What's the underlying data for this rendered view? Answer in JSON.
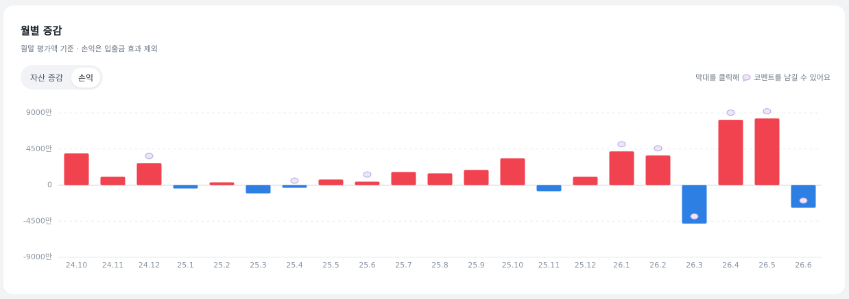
{
  "header": {
    "title": "월별 증감",
    "subtitle": "월말 평가액 기준 · 손익은 입출금 효과 제외"
  },
  "toggle": {
    "options": [
      "자산 증감",
      "손익"
    ],
    "active": 1
  },
  "hint": {
    "before": "막대를 클릭해",
    "after": "코멘트를 남길 수 있어요"
  },
  "chart_data": {
    "type": "bar",
    "categories": [
      "24.10",
      "24.11",
      "24.12",
      "25.1",
      "25.2",
      "25.3",
      "25.4",
      "25.5",
      "25.6",
      "25.7",
      "25.8",
      "25.9",
      "25.10",
      "25.11",
      "25.12",
      "26.1",
      "26.2",
      "26.3",
      "26.4",
      "26.5",
      "26.6"
    ],
    "values": [
      3950,
      1030,
      2740,
      -430,
      340,
      -1030,
      -340,
      690,
      430,
      1630,
      1460,
      1890,
      3340,
      -770,
      1030,
      4200,
      3690,
      -4800,
      8140,
      8310,
      -2830
    ],
    "has_comment": [
      false,
      false,
      true,
      false,
      false,
      false,
      true,
      false,
      true,
      false,
      false,
      false,
      false,
      false,
      false,
      true,
      true,
      true,
      true,
      true,
      true
    ],
    "positive_color": "#f0424f",
    "negative_color": "#2d7fe3",
    "ylim": [
      -9000,
      9000
    ],
    "yticks": [
      {
        "value": -9000,
        "label": "-9000만"
      },
      {
        "value": -4500,
        "label": "-4500만"
      },
      {
        "value": 0,
        "label": "0"
      },
      {
        "value": 4500,
        "label": "4500만"
      },
      {
        "value": 9000,
        "label": "9000만"
      }
    ],
    "grid": true
  }
}
